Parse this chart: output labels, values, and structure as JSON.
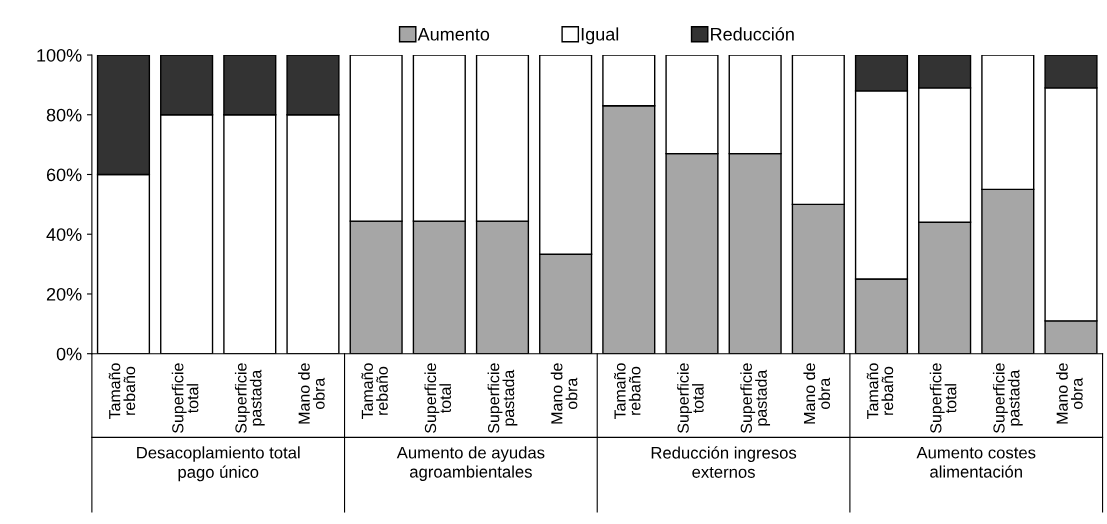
{
  "chart_data": {
    "type": "bar",
    "stacked": true,
    "categories": [
      "Tamaño\nrebaño",
      "Superficie\ntotal",
      "Superficie\npastada",
      "Mano de\nobra",
      "Tamaño\nrebaño",
      "Superficie\ntotal",
      "Superficie\npastada",
      "Mano de\nobra",
      "Tamaño\nrebaño",
      "Superficie\ntotal",
      "Superficie\npastada",
      "Mano de\nobra",
      "Tamaño\nrebaño",
      "Superficie\ntotal",
      "Superficie\npastada",
      "Mano de\nobra"
    ],
    "series": [
      {
        "name": "Aumento",
        "color": "#a6a6a6",
        "values": [
          0,
          0,
          0,
          0,
          44.4,
          44.4,
          44.4,
          33.3,
          83,
          67,
          67,
          50,
          25,
          44,
          55,
          11
        ]
      },
      {
        "name": "Igual",
        "color": "#ffffff",
        "values": [
          60,
          80,
          80,
          80,
          55.6,
          55.6,
          55.6,
          66.7,
          17,
          33,
          33,
          50,
          63,
          45,
          45,
          78
        ]
      },
      {
        "name": "Reducción",
        "color": "#333333",
        "values": [
          40,
          20,
          20,
          20,
          0,
          0,
          0,
          0,
          0,
          0,
          0,
          0,
          12,
          11,
          0,
          11
        ]
      }
    ],
    "ylim": [
      0,
      100
    ],
    "yticks": [
      {
        "value": 0,
        "label": "0%"
      },
      {
        "value": 20,
        "label": "20%"
      },
      {
        "value": 40,
        "label": "40%"
      },
      {
        "value": 60,
        "label": "60%"
      },
      {
        "value": 80,
        "label": "80%"
      },
      {
        "value": 100,
        "label": "100%"
      }
    ],
    "annotations": [
      "Desacoplamiento total\npago único",
      "Aumento de ayudas\nagroambientales",
      "Reducción ingresos\nexternos",
      "Aumento costes\nalimentación"
    ],
    "grid": false,
    "legend": "top"
  }
}
